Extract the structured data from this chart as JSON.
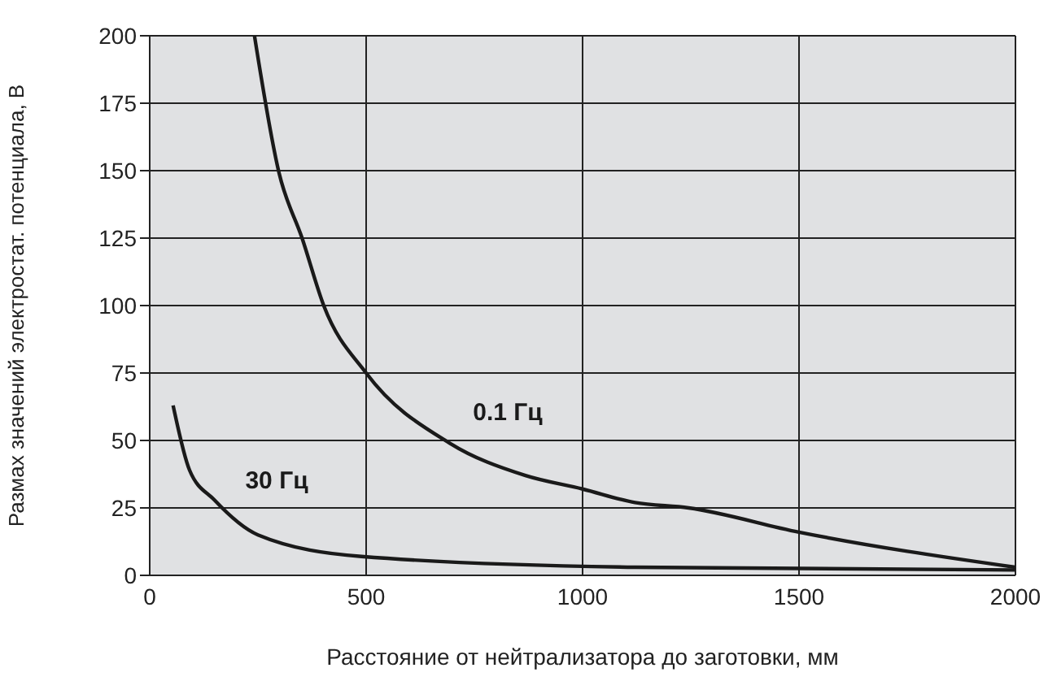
{
  "chart_data": {
    "type": "line",
    "xlabel": "Расстояние от нейтрализатора до заготовки, мм",
    "ylabel": "Размах значений электростат. потенциала, В",
    "xlim": [
      0,
      2000
    ],
    "xticks": [
      0,
      500,
      1000,
      1500,
      2000
    ],
    "ylim": [
      0,
      200
    ],
    "yticks": [
      0,
      25,
      50,
      75,
      100,
      125,
      150,
      175,
      200
    ],
    "grid": true,
    "marker": "none",
    "line_style": "solid",
    "series": [
      {
        "color": "#1a1a1a",
        "x": [
          242,
          299,
          352,
          402,
          500,
          693,
          868,
          1000,
          1121,
          1245,
          1500,
          2000
        ],
        "values": [
          200,
          149,
          125,
          100,
          75,
          49,
          37,
          32,
          27,
          25,
          16,
          3
        ]
      },
      {
        "color": "#1a1a1a",
        "x": [
          54,
          92,
          149,
          250,
          489,
          1121,
          2000
        ],
        "values": [
          63,
          39,
          28,
          15,
          7,
          3,
          2
        ]
      }
    ],
    "annotations": [
      "0.1 Гц",
      "30 Гц"
    ]
  }
}
